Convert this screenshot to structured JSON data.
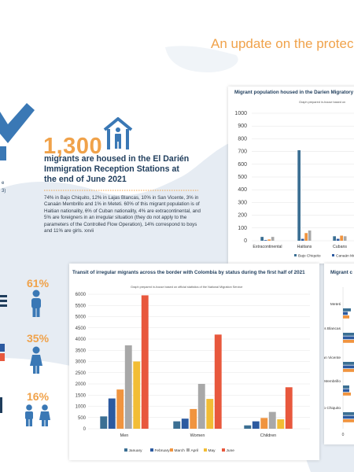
{
  "headline": "An update on the protec",
  "left_fragments": [
    "e",
    "3)"
  ],
  "main_stat": {
    "number": "1,300",
    "text": "migrants are housed in the El Darién Immigration Reception Stations at the end of June 2021",
    "details": "74% in Bajo Chiquito, 12% in Lajas Blancas, 10% in San Vicente, 3% in Canaán Membrillo and 1% in Meteti. 60% of this migrant population is of Haitian nationality, 6% of Cuban nationality, 4% are extracontinental, and 5% are foreigners in an irregular situation (they do not apply to the parameters of the Controlled Flow Operation), 14% correspond to boys and 11% are girls. xxvii"
  },
  "percent_stats": [
    {
      "value": "61%",
      "icon": "man-icon"
    },
    {
      "value": "35%",
      "icon": "woman-icon"
    },
    {
      "value": "16%",
      "icon": "children-icon"
    }
  ],
  "colors": {
    "accent": "#f0a24a",
    "dark_blue": "#1f3d5c",
    "icon_blue": "#3a78b5",
    "map": "#e6ecf3",
    "series": [
      "#3b6f93",
      "#2c5aa0",
      "#f0943f",
      "#a8a8a8",
      "#f2bd35",
      "#e8583d"
    ]
  },
  "chart_data": [
    {
      "type": "bar",
      "title": "Migrant population housed in the Darien Migratory",
      "note": "Graph prepared in-house based on",
      "ylim": [
        0,
        1000
      ],
      "yticks": [
        "0",
        "100",
        "200",
        "300",
        "400",
        "500",
        "600",
        "700",
        "800",
        "900",
        "1000"
      ],
      "categories": [
        "Extracontinental",
        "Haitians",
        "Cubans"
      ],
      "series": [
        {
          "name": "Bajo Chiquito",
          "values": [
            30,
            710,
            35
          ]
        },
        {
          "name": "Canaán Membrillo",
          "values": [
            5,
            15,
            15
          ]
        },
        {
          "name": "",
          "values": [
            10,
            60,
            40
          ]
        },
        {
          "name": "",
          "values": [
            30,
            80,
            35
          ]
        }
      ],
      "legend": [
        "Bajo Chiquito",
        "Canaán Membr"
      ]
    },
    {
      "type": "bar",
      "title": "Transit of irregular migrants across the border with Colombia by status during the first half of 2021",
      "note": "Graph prepared in-house based on official statistics of the National Migration Service",
      "ylim": [
        0,
        6000
      ],
      "yticks": [
        "0",
        "500",
        "1000",
        "1500",
        "2000",
        "2500",
        "3000",
        "3500",
        "4000",
        "4500",
        "5000",
        "5500",
        "6000"
      ],
      "categories": [
        "Men",
        "Women",
        "Children"
      ],
      "series": [
        {
          "name": "January",
          "values": [
            550,
            330,
            150
          ]
        },
        {
          "name": "February",
          "values": [
            1350,
            450,
            330
          ]
        },
        {
          "name": "March",
          "values": [
            1750,
            880,
            480
          ]
        },
        {
          "name": "April",
          "values": [
            3720,
            2000,
            750
          ]
        },
        {
          "name": "May",
          "values": [
            3000,
            1330,
            420
          ]
        },
        {
          "name": "June",
          "values": [
            5950,
            4200,
            1850
          ]
        }
      ]
    },
    {
      "type": "bar",
      "title": "Migrant c",
      "orientation": "horizontal",
      "categories": [
        "Meteti",
        "Lajas Blancas",
        "San Vicente",
        "Canaan Membrillo",
        "Bajo Chiquito"
      ],
      "xticks": [
        "0"
      ],
      "series": [
        {
          "name": "",
          "values": [
            10,
            15,
            18,
            8,
            20
          ]
        },
        {
          "name": "",
          "values": [
            6,
            15,
            15,
            8,
            20
          ]
        },
        {
          "name": "",
          "values": [
            8,
            15,
            15,
            10,
            20
          ]
        }
      ]
    }
  ]
}
